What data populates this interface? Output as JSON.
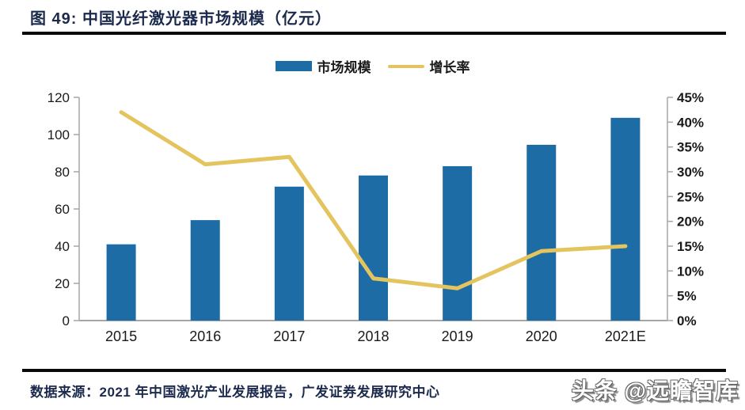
{
  "header": {
    "title": "图 49: 中国光纤激光器市场规模（亿元）"
  },
  "legend": [
    {
      "label": "市场规模",
      "type": "bar",
      "color": "#1e6ca5"
    },
    {
      "label": "增长率",
      "type": "line",
      "color": "#e3c45e"
    }
  ],
  "chart_data": {
    "type": "bar+line combo",
    "title": "中国光纤激光器市场规模（亿元）",
    "categories": [
      "2015",
      "2016",
      "2017",
      "2018",
      "2019",
      "2020",
      "2021E"
    ],
    "series": [
      {
        "name": "市场规模",
        "type": "bar",
        "axis": "left",
        "color": "#1e6ca5",
        "values": [
          41,
          54,
          72,
          78,
          83,
          94.5,
          109
        ]
      },
      {
        "name": "增长率",
        "type": "line",
        "axis": "right",
        "color": "#e3c45e",
        "values": [
          42,
          31.5,
          33,
          8.5,
          6.5,
          14,
          15
        ]
      }
    ],
    "y_left": {
      "min": 0,
      "max": 120,
      "step": 20,
      "suffix": ""
    },
    "y_right": {
      "min": 0,
      "max": 45,
      "step": 5,
      "suffix": "%"
    },
    "grid": false,
    "legend_position": "top"
  },
  "footer": {
    "source": "数据来源：2021 年中国激光产业发展报告，广发证券发展研究中心",
    "watermark": "头条 @远瞻智库"
  },
  "colors": {
    "bar": "#1e6ca5",
    "line": "#e3c45e",
    "title_text": "#1b2a4c",
    "axis_line": "#a6a6a6",
    "axis_text": "#1a1a1a",
    "rule": "#0a0a0a"
  }
}
